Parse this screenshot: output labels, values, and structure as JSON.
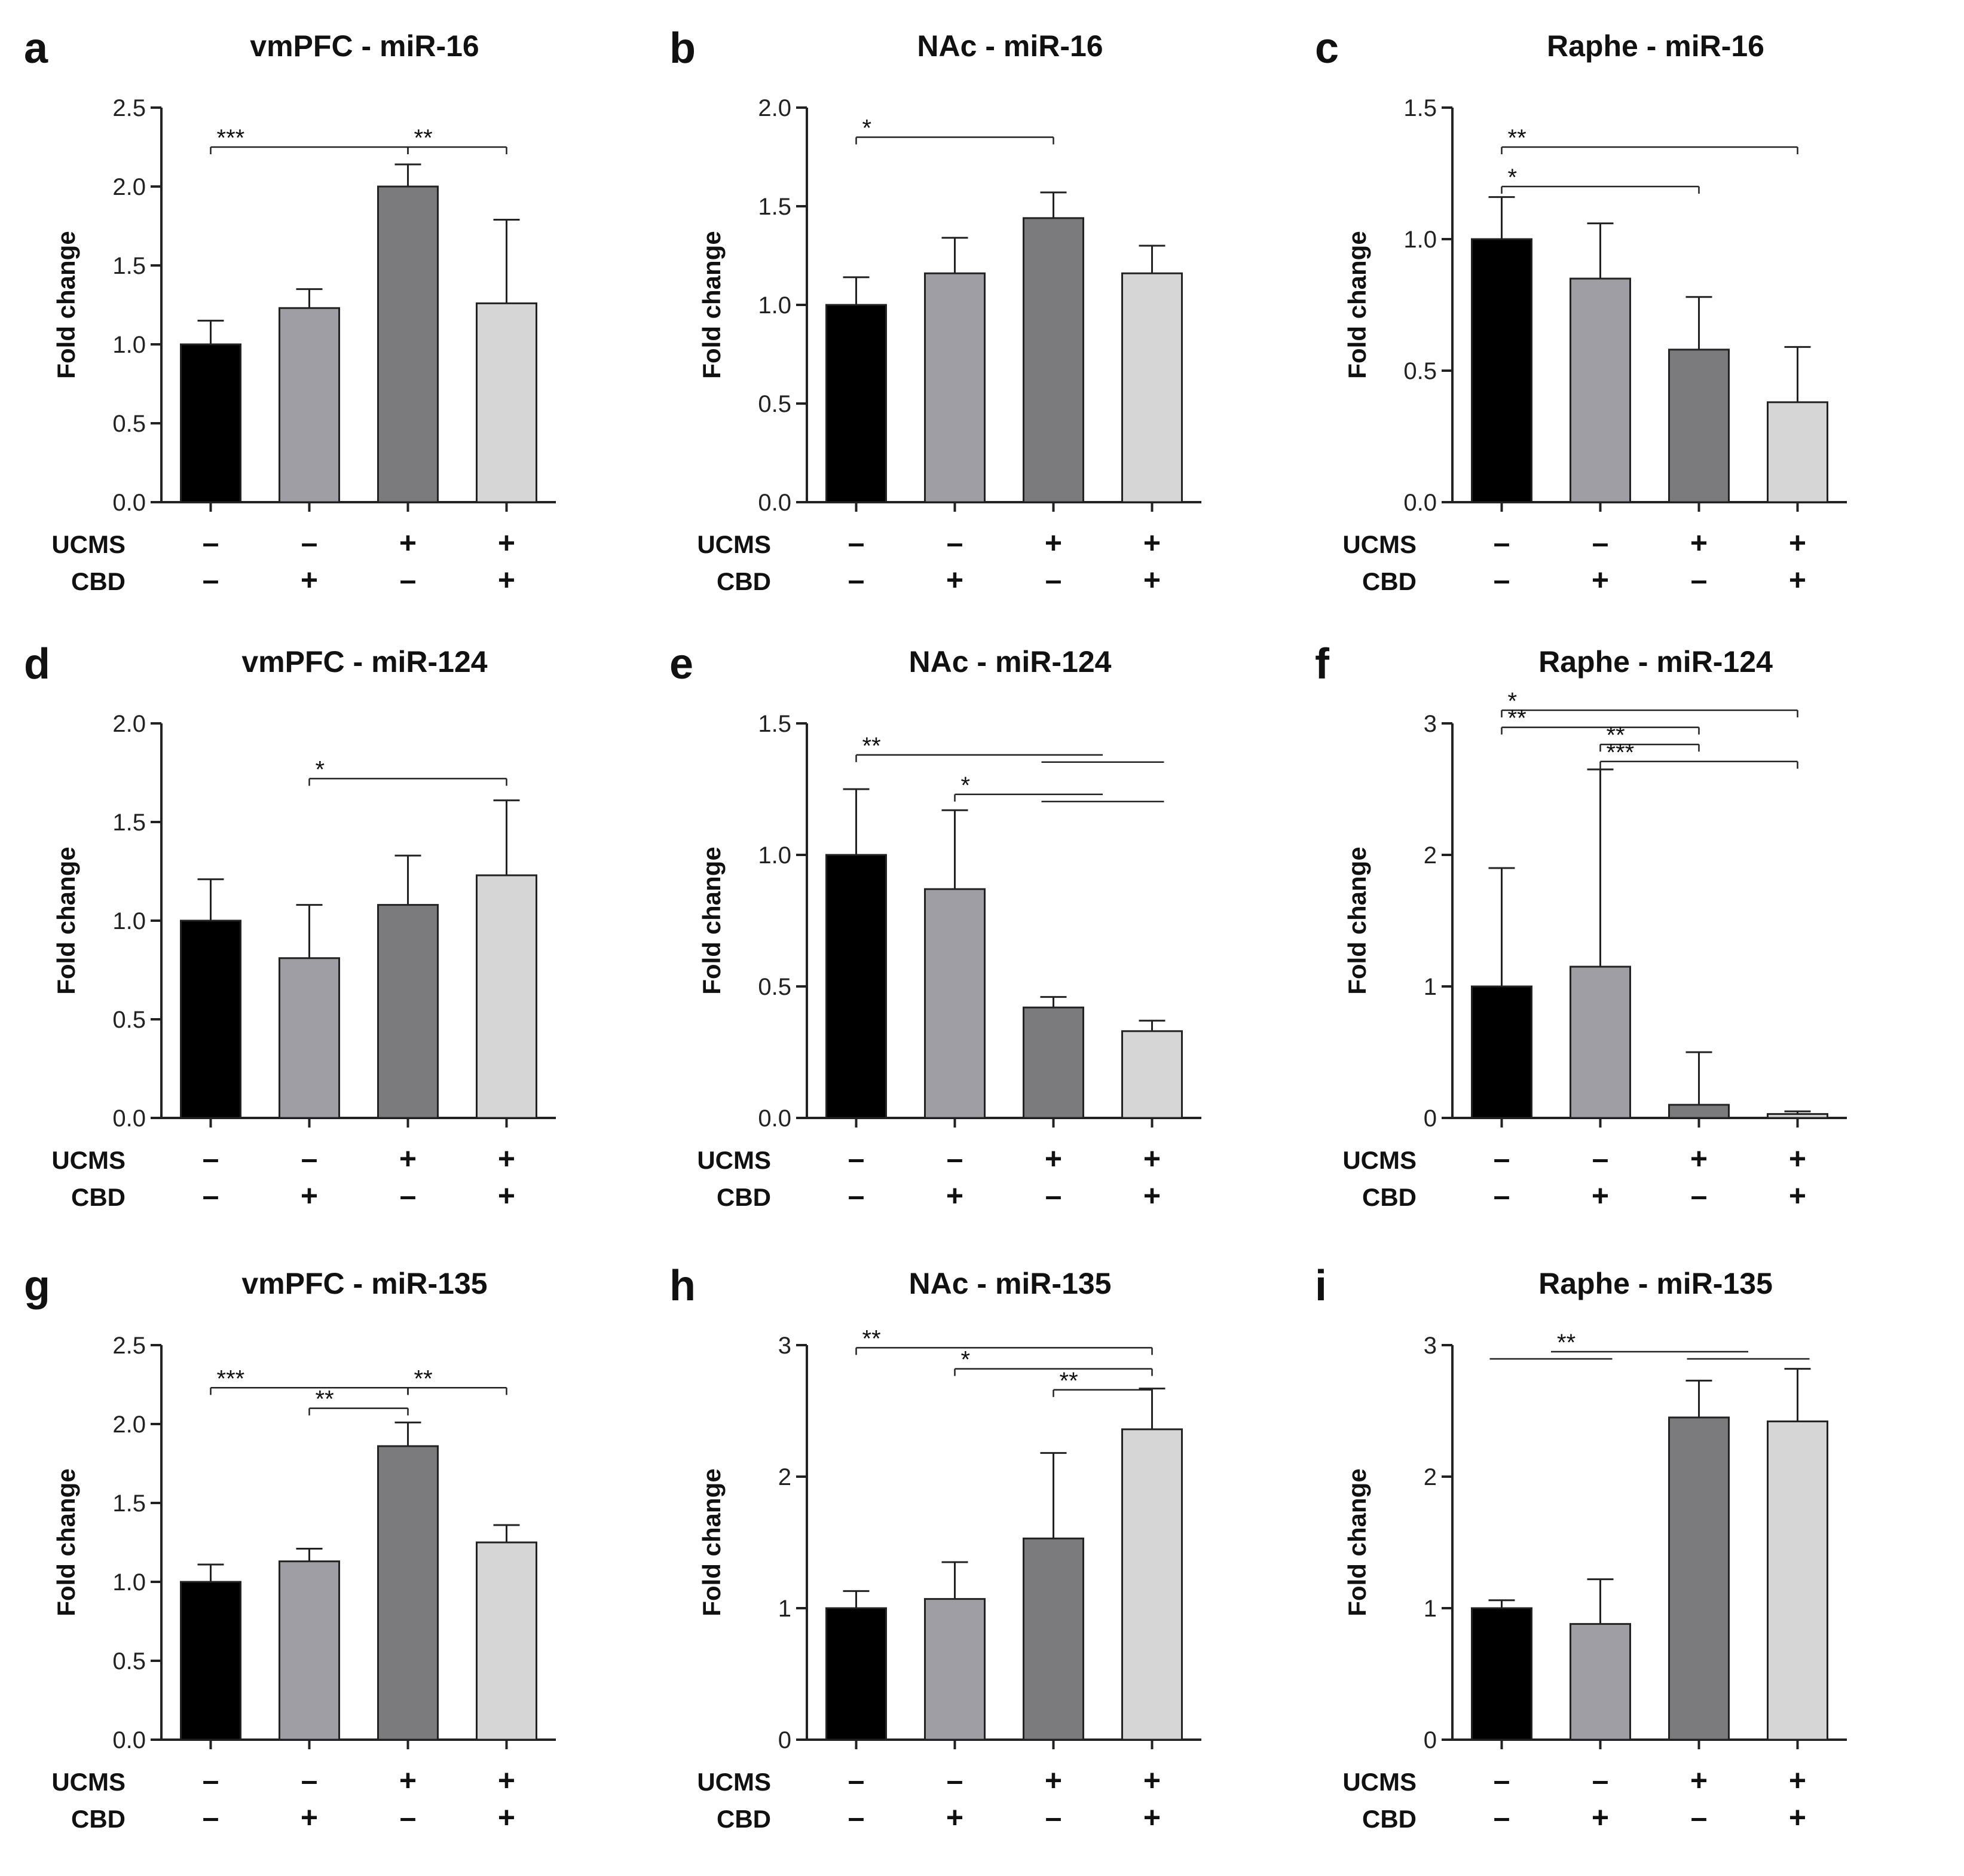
{
  "figure": {
    "colors": [
      "#000000",
      "#9e9ea4",
      "#7b7b7d",
      "#d6d6d6"
    ],
    "condition_rows": [
      {
        "label": "UCMS",
        "signs": [
          "–",
          "–",
          "+",
          "+"
        ]
      },
      {
        "label": "CBD",
        "signs": [
          "–",
          "+",
          "–",
          "+"
        ]
      }
    ]
  },
  "chart_data": [
    {
      "panel": "a",
      "type": "bar",
      "title": "vmPFC - miR-16",
      "ylabel": "Fold change",
      "ylim": [
        0,
        2.5
      ],
      "yticks": [
        "0.0",
        "0.5",
        "1.0",
        "1.5",
        "2.0",
        "2.5"
      ],
      "ytick_values": [
        0,
        0.5,
        1,
        1.5,
        2,
        2.5
      ],
      "values": [
        1.0,
        1.23,
        2.0,
        1.26
      ],
      "errors": [
        0.15,
        0.12,
        0.14,
        0.53
      ],
      "significance": [
        {
          "from": 0,
          "to": 2,
          "text": "***",
          "y": 2.25
        },
        {
          "from": 2,
          "to": 3,
          "text": "**",
          "y": 2.25
        }
      ]
    },
    {
      "panel": "b",
      "type": "bar",
      "title": "NAc - miR-16",
      "ylabel": "Fold change",
      "ylim": [
        0,
        2.0
      ],
      "yticks": [
        "0.0",
        "0.5",
        "1.0",
        "1.5",
        "2.0"
      ],
      "ytick_values": [
        0,
        0.5,
        1,
        1.5,
        2
      ],
      "values": [
        1.0,
        1.16,
        1.44,
        1.16
      ],
      "errors": [
        0.14,
        0.18,
        0.13,
        0.14
      ],
      "significance": [
        {
          "from": 0,
          "to": 2,
          "text": "*",
          "y": 1.85
        }
      ]
    },
    {
      "panel": "c",
      "type": "bar",
      "title": "Raphe - miR-16",
      "ylabel": "Fold change",
      "ylim": [
        0,
        1.5
      ],
      "yticks": [
        "0.0",
        "0.5",
        "1.0",
        "1.5"
      ],
      "ytick_values": [
        0,
        0.5,
        1,
        1.5
      ],
      "values": [
        1.0,
        0.85,
        0.58,
        0.38
      ],
      "errors": [
        0.16,
        0.21,
        0.2,
        0.21
      ],
      "significance": [
        {
          "from": 0,
          "to": 3,
          "text": "**",
          "y": 1.35
        },
        {
          "from": 0,
          "to": 2,
          "text": "*",
          "y": 1.2
        }
      ]
    },
    {
      "panel": "d",
      "type": "bar",
      "title": "vmPFC - miR-124",
      "ylabel": "Fold change",
      "ylim": [
        0,
        2.0
      ],
      "yticks": [
        "0.0",
        "0.5",
        "1.0",
        "1.5",
        "2.0"
      ],
      "ytick_values": [
        0,
        0.5,
        1,
        1.5,
        2
      ],
      "values": [
        1.0,
        0.81,
        1.08,
        1.23
      ],
      "errors": [
        0.21,
        0.27,
        0.25,
        0.38
      ],
      "significance": [
        {
          "from": 1,
          "to": 3,
          "text": "*",
          "y": 1.72
        }
      ]
    },
    {
      "panel": "e",
      "type": "bar",
      "title": "NAc - miR-124",
      "ylabel": "Fold change",
      "ylim": [
        0,
        1.5
      ],
      "yticks": [
        "0.0",
        "0.5",
        "1.0",
        "1.5"
      ],
      "ytick_values": [
        0,
        0.5,
        1,
        1.5
      ],
      "values": [
        1.0,
        0.87,
        0.42,
        0.33
      ],
      "errors": [
        0.25,
        0.3,
        0.04,
        0.04
      ],
      "significance": [
        {
          "from": 0,
          "to": 2.5,
          "text": "**",
          "y": 1.38,
          "group_from": 2,
          "group_to": 3
        },
        {
          "from": 1,
          "to": 2.5,
          "text": "*",
          "y": 1.23,
          "group_from": 2,
          "group_to": 3
        }
      ]
    },
    {
      "panel": "f",
      "type": "bar",
      "title": "Raphe - miR-124",
      "ylabel": "Fold change",
      "ylim": [
        0,
        3
      ],
      "yticks": [
        "0",
        "1",
        "2",
        "3"
      ],
      "ytick_values": [
        0,
        1,
        2,
        3
      ],
      "values": [
        1.0,
        1.15,
        0.1,
        0.03
      ],
      "errors": [
        0.9,
        1.5,
        0.4,
        0.02
      ],
      "significance": [
        {
          "from": 0,
          "to": 3,
          "text": "*",
          "y": 3.1
        },
        {
          "from": 0,
          "to": 2,
          "text": "**",
          "y": 2.97
        },
        {
          "from": 1,
          "to": 2,
          "text": "**",
          "y": 2.84
        },
        {
          "from": 1,
          "to": 3,
          "text": "***",
          "y": 2.71
        }
      ]
    },
    {
      "panel": "g",
      "type": "bar",
      "title": "vmPFC - miR-135",
      "ylabel": "Fold change",
      "ylim": [
        0,
        2.5
      ],
      "yticks": [
        "0.0",
        "0.5",
        "1.0",
        "1.5",
        "2.0",
        "2.5"
      ],
      "ytick_values": [
        0,
        0.5,
        1,
        1.5,
        2,
        2.5
      ],
      "values": [
        1.0,
        1.13,
        1.86,
        1.25
      ],
      "errors": [
        0.11,
        0.08,
        0.15,
        0.11
      ],
      "significance": [
        {
          "from": 0,
          "to": 2,
          "text": "***",
          "y": 2.23
        },
        {
          "from": 2,
          "to": 3,
          "text": "**",
          "y": 2.23
        },
        {
          "from": 1,
          "to": 2,
          "text": "**",
          "y": 2.1
        }
      ]
    },
    {
      "panel": "h",
      "type": "bar",
      "title": "NAc - miR-135",
      "ylabel": "Fold change",
      "ylim": [
        0,
        3
      ],
      "yticks": [
        "0",
        "1",
        "2",
        "3"
      ],
      "ytick_values": [
        0,
        1,
        2,
        3
      ],
      "values": [
        1.0,
        1.07,
        1.53,
        2.36
      ],
      "errors": [
        0.13,
        0.28,
        0.65,
        0.31
      ],
      "significance": [
        {
          "from": 0,
          "to": 3,
          "text": "**",
          "y": 2.98
        },
        {
          "from": 1,
          "to": 3,
          "text": "*",
          "y": 2.82
        },
        {
          "from": 2,
          "to": 3,
          "text": "**",
          "y": 2.66
        }
      ]
    },
    {
      "panel": "i",
      "type": "bar",
      "title": "Raphe - miR-135",
      "ylabel": "Fold change",
      "ylim": [
        0,
        3
      ],
      "yticks": [
        "0",
        "1",
        "2",
        "3"
      ],
      "ytick_values": [
        0,
        1,
        2,
        3
      ],
      "values": [
        1.0,
        0.88,
        2.45,
        2.42
      ],
      "errors": [
        0.06,
        0.34,
        0.28,
        0.4
      ],
      "significance": [
        {
          "from": 0.5,
          "to": 2.5,
          "text": "**",
          "y": 2.95,
          "group_from": 0,
          "group_to": 1,
          "group_from2": 2,
          "group_to2": 3
        }
      ]
    }
  ]
}
